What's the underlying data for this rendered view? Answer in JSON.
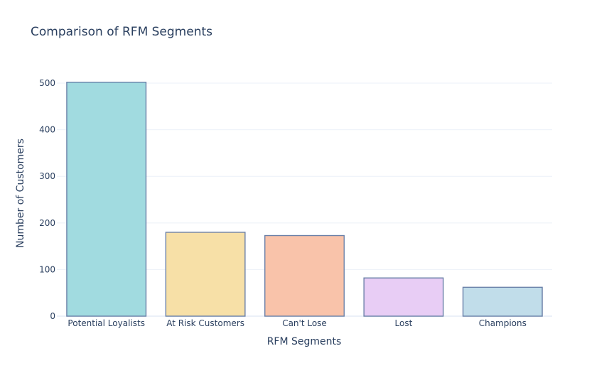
{
  "chart_data": {
    "type": "bar",
    "title": "Comparison of RFM Segments",
    "xlabel": "RFM Segments",
    "ylabel": "Number of Customers",
    "categories": [
      "Potential Loyalists",
      "At Risk Customers",
      "Can't Lose",
      "Lost",
      "Champions"
    ],
    "values": [
      502,
      180,
      173,
      82,
      62
    ],
    "ylim": [
      0,
      526
    ],
    "yticks": [
      0,
      100,
      200,
      300,
      400,
      500
    ],
    "grid": true,
    "legend": "none",
    "colors": [
      "#a1dbe0",
      "#f7e0a7",
      "#f9c3aa",
      "#e8cdf5",
      "#c1ddea"
    ],
    "bar_outline_color": "#6a80a8",
    "gridline_color": "#ebf0f8",
    "text_color": "#2a3f5f"
  }
}
